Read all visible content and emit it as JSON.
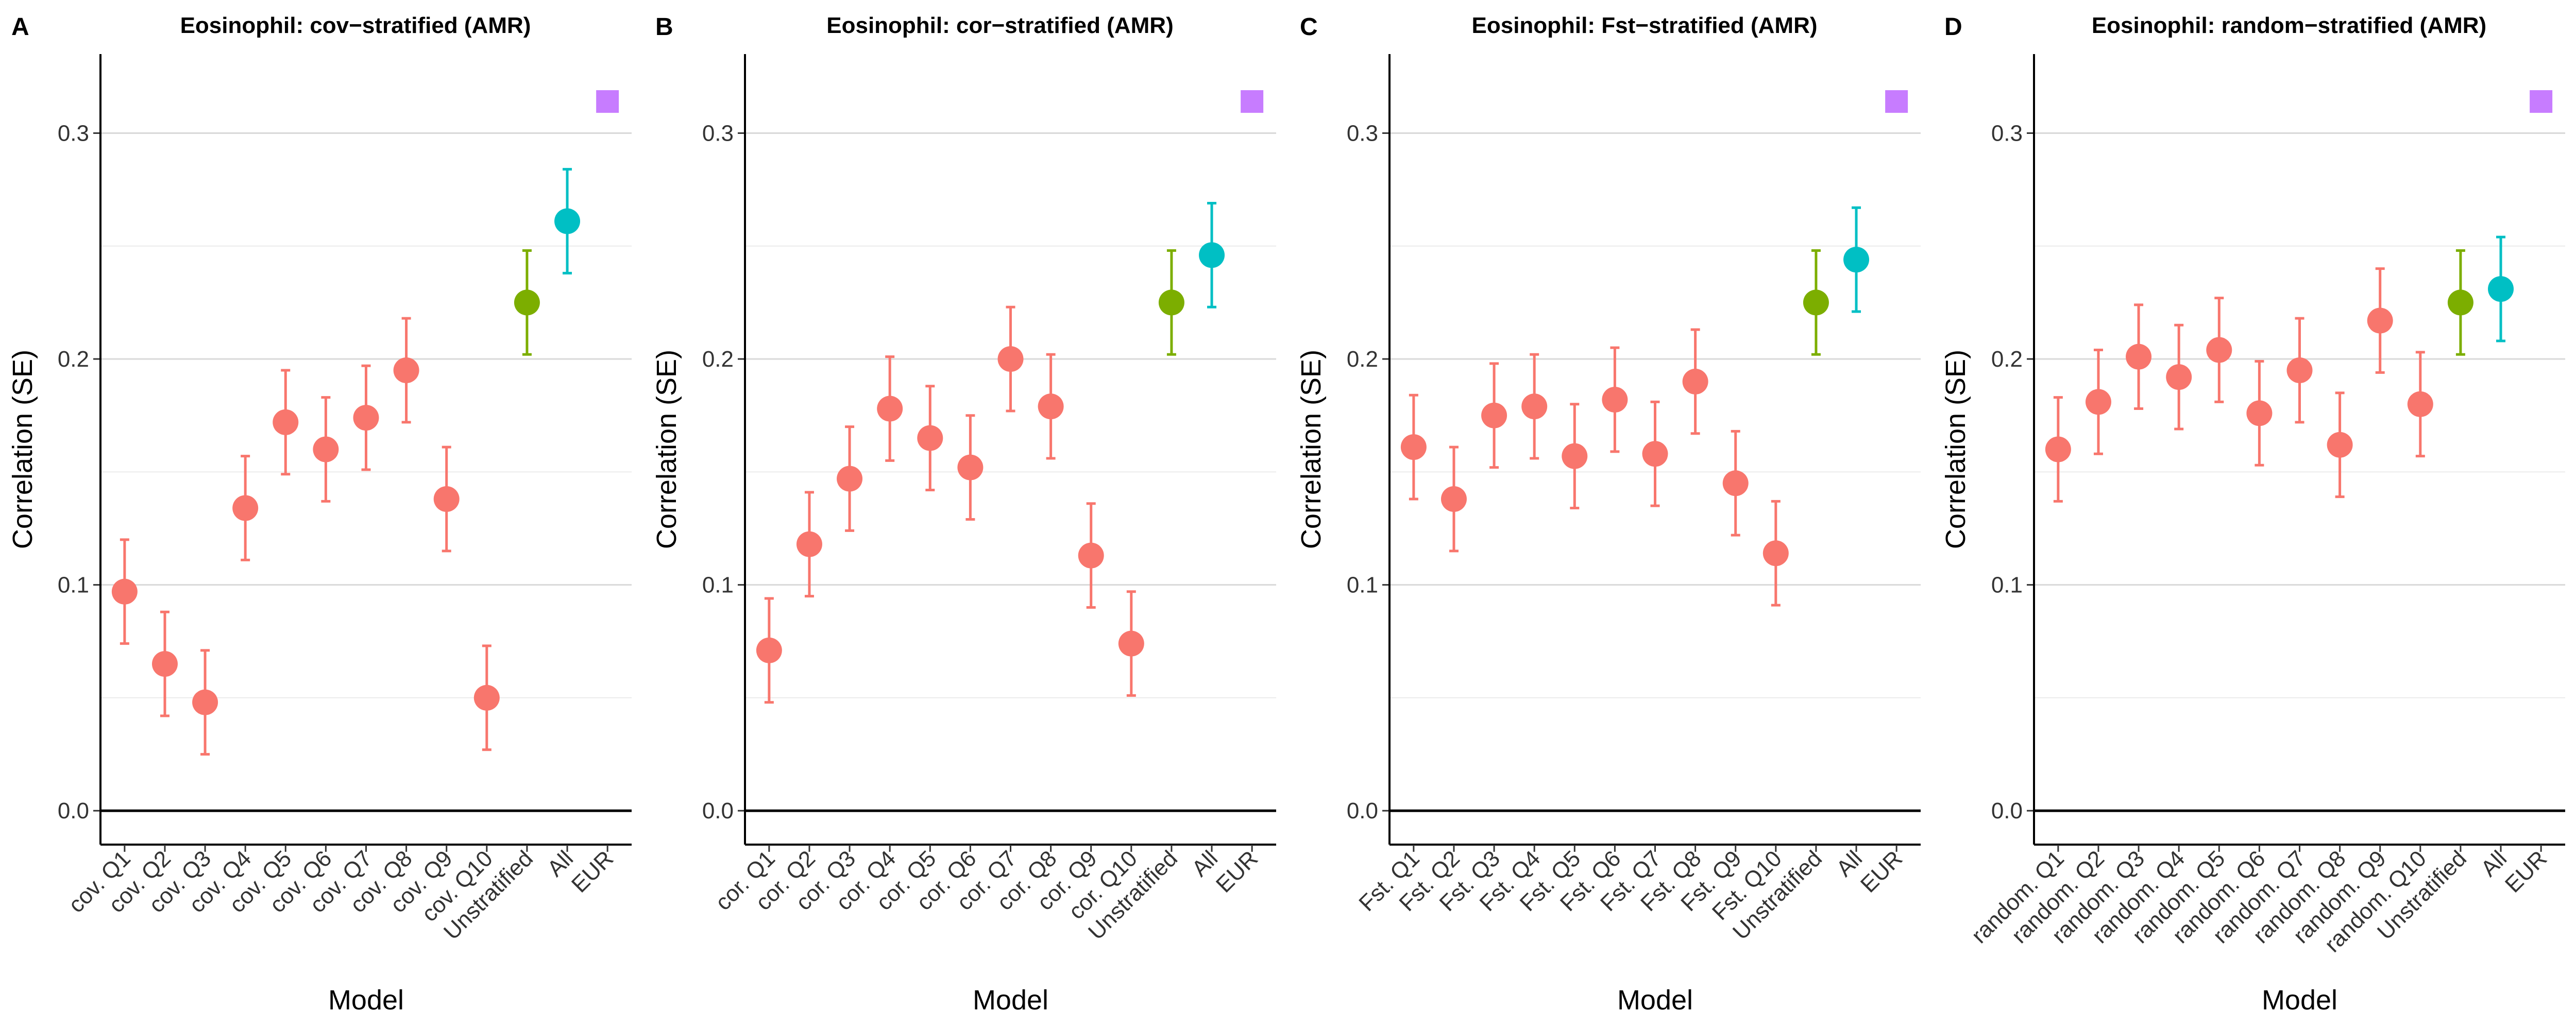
{
  "colors": {
    "quantile": "#F8766D",
    "unstratified": "#7CAE00",
    "all": "#00BFC4",
    "eur": "#C77CFF"
  },
  "chart_data": [
    {
      "type": "scatter",
      "letter": "A",
      "title": "Eosinophil: cov−stratified (AMR)",
      "xlabel": "Model",
      "ylabel": "Correlation (SE)",
      "ylim": [
        -0.015,
        0.335
      ],
      "yticks": [
        0.0,
        0.1,
        0.2,
        0.3
      ],
      "ytick_labels": [
        "0.0",
        "0.1",
        "0.2",
        "0.3"
      ],
      "categories": [
        "cov. Q1",
        "cov. Q2",
        "cov. Q3",
        "cov. Q4",
        "cov. Q5",
        "cov. Q6",
        "cov. Q7",
        "cov. Q8",
        "cov. Q9",
        "cov. Q10",
        "Unstratified",
        "All",
        "EUR"
      ],
      "groups": [
        "quantile",
        "quantile",
        "quantile",
        "quantile",
        "quantile",
        "quantile",
        "quantile",
        "quantile",
        "quantile",
        "quantile",
        "unstratified",
        "all",
        "eur"
      ],
      "values": [
        0.097,
        0.065,
        0.048,
        0.134,
        0.172,
        0.16,
        0.174,
        0.195,
        0.138,
        0.05,
        0.225,
        0.261,
        0.314
      ],
      "se": [
        0.023,
        0.023,
        0.023,
        0.023,
        0.023,
        0.023,
        0.023,
        0.023,
        0.023,
        0.023,
        0.023,
        0.023,
        0
      ]
    },
    {
      "type": "scatter",
      "letter": "B",
      "title": "Eosinophil: cor−stratified (AMR)",
      "xlabel": "Model",
      "ylabel": "Correlation (SE)",
      "ylim": [
        -0.015,
        0.335
      ],
      "yticks": [
        0.0,
        0.1,
        0.2,
        0.3
      ],
      "ytick_labels": [
        "0.0",
        "0.1",
        "0.2",
        "0.3"
      ],
      "categories": [
        "cor. Q1",
        "cor. Q2",
        "cor. Q3",
        "cor. Q4",
        "cor. Q5",
        "cor. Q6",
        "cor. Q7",
        "cor. Q8",
        "cor. Q9",
        "cor. Q10",
        "Unstratified",
        "All",
        "EUR"
      ],
      "groups": [
        "quantile",
        "quantile",
        "quantile",
        "quantile",
        "quantile",
        "quantile",
        "quantile",
        "quantile",
        "quantile",
        "quantile",
        "unstratified",
        "all",
        "eur"
      ],
      "values": [
        0.071,
        0.118,
        0.147,
        0.178,
        0.165,
        0.152,
        0.2,
        0.179,
        0.113,
        0.074,
        0.225,
        0.246,
        0.314
      ],
      "se": [
        0.023,
        0.023,
        0.023,
        0.023,
        0.023,
        0.023,
        0.023,
        0.023,
        0.023,
        0.023,
        0.023,
        0.023,
        0
      ]
    },
    {
      "type": "scatter",
      "letter": "C",
      "title": "Eosinophil: Fst−stratified (AMR)",
      "xlabel": "Model",
      "ylabel": "Correlation (SE)",
      "ylim": [
        -0.015,
        0.335
      ],
      "yticks": [
        0.0,
        0.1,
        0.2,
        0.3
      ],
      "ytick_labels": [
        "0.0",
        "0.1",
        "0.2",
        "0.3"
      ],
      "categories": [
        "Fst. Q1",
        "Fst. Q2",
        "Fst. Q3",
        "Fst. Q4",
        "Fst. Q5",
        "Fst. Q6",
        "Fst. Q7",
        "Fst. Q8",
        "Fst. Q9",
        "Fst. Q10",
        "Unstratified",
        "All",
        "EUR"
      ],
      "groups": [
        "quantile",
        "quantile",
        "quantile",
        "quantile",
        "quantile",
        "quantile",
        "quantile",
        "quantile",
        "quantile",
        "quantile",
        "unstratified",
        "all",
        "eur"
      ],
      "values": [
        0.161,
        0.138,
        0.175,
        0.179,
        0.157,
        0.182,
        0.158,
        0.19,
        0.145,
        0.114,
        0.225,
        0.244,
        0.314
      ],
      "se": [
        0.023,
        0.023,
        0.023,
        0.023,
        0.023,
        0.023,
        0.023,
        0.023,
        0.023,
        0.023,
        0.023,
        0.023,
        0
      ]
    },
    {
      "type": "scatter",
      "letter": "D",
      "title": "Eosinophil: random−stratified (AMR)",
      "xlabel": "Model",
      "ylabel": "Correlation (SE)",
      "ylim": [
        -0.015,
        0.335
      ],
      "yticks": [
        0.0,
        0.1,
        0.2,
        0.3
      ],
      "ytick_labels": [
        "0.0",
        "0.1",
        "0.2",
        "0.3"
      ],
      "categories": [
        "random. Q1",
        "random. Q2",
        "random. Q3",
        "random. Q4",
        "random. Q5",
        "random. Q6",
        "random. Q7",
        "random. Q8",
        "random. Q9",
        "random. Q10",
        "Unstratified",
        "All",
        "EUR"
      ],
      "groups": [
        "quantile",
        "quantile",
        "quantile",
        "quantile",
        "quantile",
        "quantile",
        "quantile",
        "quantile",
        "quantile",
        "quantile",
        "unstratified",
        "all",
        "eur"
      ],
      "values": [
        0.16,
        0.181,
        0.201,
        0.192,
        0.204,
        0.176,
        0.195,
        0.162,
        0.217,
        0.18,
        0.225,
        0.231,
        0.314
      ],
      "se": [
        0.023,
        0.023,
        0.023,
        0.023,
        0.023,
        0.023,
        0.023,
        0.023,
        0.023,
        0.023,
        0.023,
        0.023,
        0
      ]
    }
  ]
}
